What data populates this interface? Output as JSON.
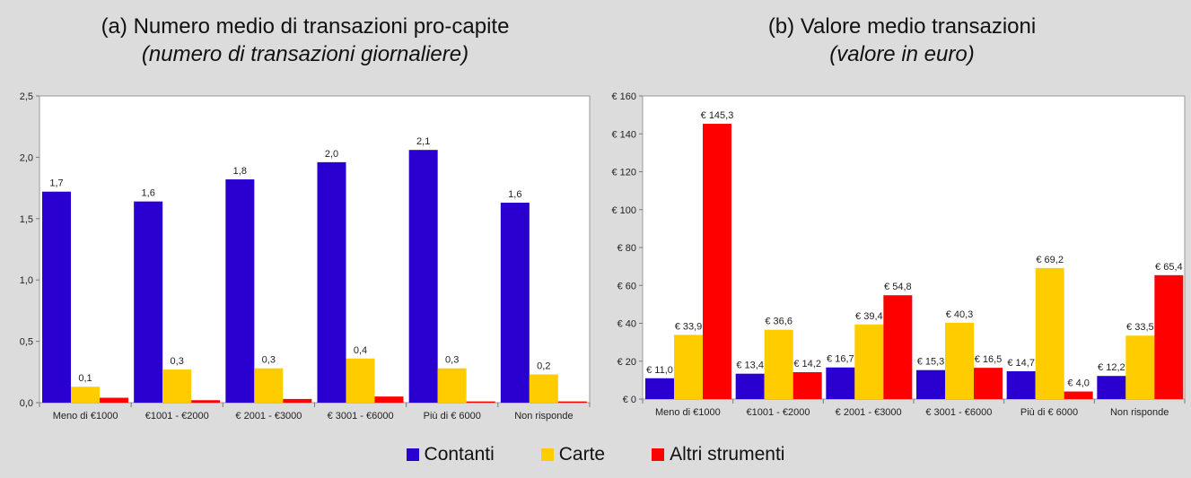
{
  "panel_a": {
    "title": "(a)  Numero medio di transazioni pro-capite",
    "subtitle": "(numero di transazioni giornaliere)"
  },
  "panel_b": {
    "title": "(b)  Valore medio transazioni",
    "subtitle": "(valore in euro)"
  },
  "legend": [
    {
      "name": "Contanti",
      "color": "#2a00d0"
    },
    {
      "name": "Carte",
      "color": "#ffcc00"
    },
    {
      "name": "Altri strumenti",
      "color": "#ff0000"
    }
  ],
  "chart_data": [
    {
      "type": "bar",
      "title": "(a)  Numero medio di transazioni pro-capite",
      "subtitle": "(numero di transazioni giornaliere)",
      "categories": [
        "Meno di €1000",
        "€1001 - €2000",
        "€ 2001 - €3000",
        "€ 3001 - €6000",
        "Più di € 6000",
        "Non risponde"
      ],
      "ylim": [
        0,
        2.5
      ],
      "yticks": [
        "0,0",
        "0,5",
        "1,0",
        "1,5",
        "2,0",
        "2,5"
      ],
      "grid": false,
      "legend_position": "bottom",
      "series": [
        {
          "name": "Contanti",
          "color": "#2a00d0",
          "values": [
            1.72,
            1.64,
            1.82,
            1.96,
            2.06,
            1.63
          ],
          "labels": [
            "1,7",
            "1,6",
            "1,8",
            "2,0",
            "2,1",
            "1,6"
          ]
        },
        {
          "name": "Carte",
          "color": "#ffcc00",
          "values": [
            0.13,
            0.27,
            0.28,
            0.36,
            0.28,
            0.23
          ],
          "labels": [
            "0,1",
            "0,3",
            "0,3",
            "0,4",
            "0,3",
            "0,2"
          ]
        },
        {
          "name": "Altri strumenti",
          "color": "#ff0000",
          "values": [
            0.04,
            0.02,
            0.03,
            0.05,
            0.01,
            0.01
          ],
          "labels": [
            "",
            "",
            "",
            "",
            "",
            ""
          ]
        }
      ]
    },
    {
      "type": "bar",
      "title": "(b)  Valore medio transazioni",
      "subtitle": "(valore in euro)",
      "categories": [
        "Meno di €1000",
        "€1001 - €2000",
        "€ 2001 - €3000",
        "€ 3001 - €6000",
        "Più di € 6000",
        "Non risponde"
      ],
      "ylim": [
        0,
        160
      ],
      "yticks": [
        "€ 0",
        "€ 20",
        "€ 40",
        "€ 60",
        "€ 80",
        "€ 100",
        "€ 120",
        "€ 140",
        "€ 160"
      ],
      "grid": false,
      "legend_position": "bottom",
      "series": [
        {
          "name": "Contanti",
          "color": "#2a00d0",
          "values": [
            11.0,
            13.4,
            16.7,
            15.3,
            14.7,
            12.2
          ],
          "labels": [
            "€ 11,0",
            "€ 13,4",
            "€ 16,7",
            "€ 15,3",
            "€ 14,7",
            "€ 12,2"
          ]
        },
        {
          "name": "Carte",
          "color": "#ffcc00",
          "values": [
            33.9,
            36.6,
            39.4,
            40.3,
            69.2,
            33.5
          ],
          "labels": [
            "€ 33,9",
            "€ 36,6",
            "€ 39,4",
            "€ 40,3",
            "€ 69,2",
            "€ 33,5"
          ]
        },
        {
          "name": "Altri strumenti",
          "color": "#ff0000",
          "values": [
            145.3,
            14.2,
            54.8,
            16.5,
            4.0,
            65.4
          ],
          "labels": [
            "€ 145,3",
            "€ 14,2",
            "€ 54,8",
            "€ 16,5",
            "€ 4,0",
            "€ 65,4"
          ]
        }
      ]
    }
  ]
}
